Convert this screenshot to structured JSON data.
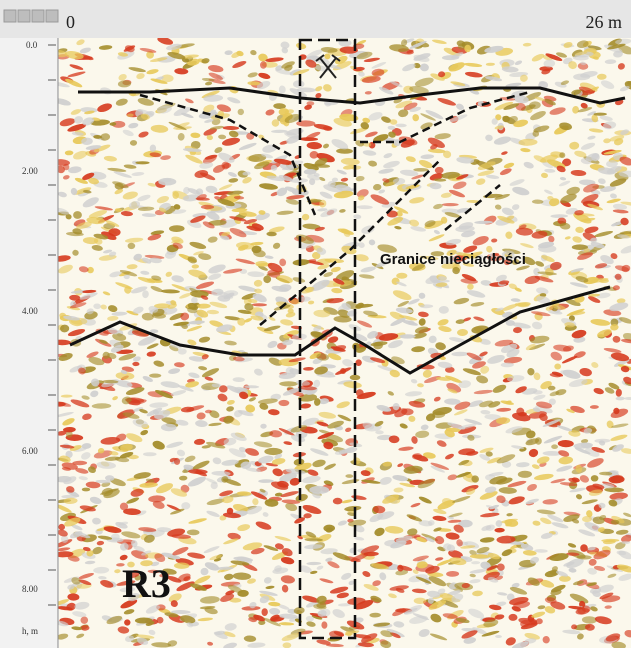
{
  "header": {
    "start": "0",
    "end": "26 m"
  },
  "depth_axis": {
    "labels": [
      "0.0",
      "2.00",
      "4.00",
      "6.00",
      "8.00"
    ],
    "unit": "h, m"
  },
  "annotations": {
    "boundaries": "Granice nieciągłości",
    "profile": "R3"
  }
}
